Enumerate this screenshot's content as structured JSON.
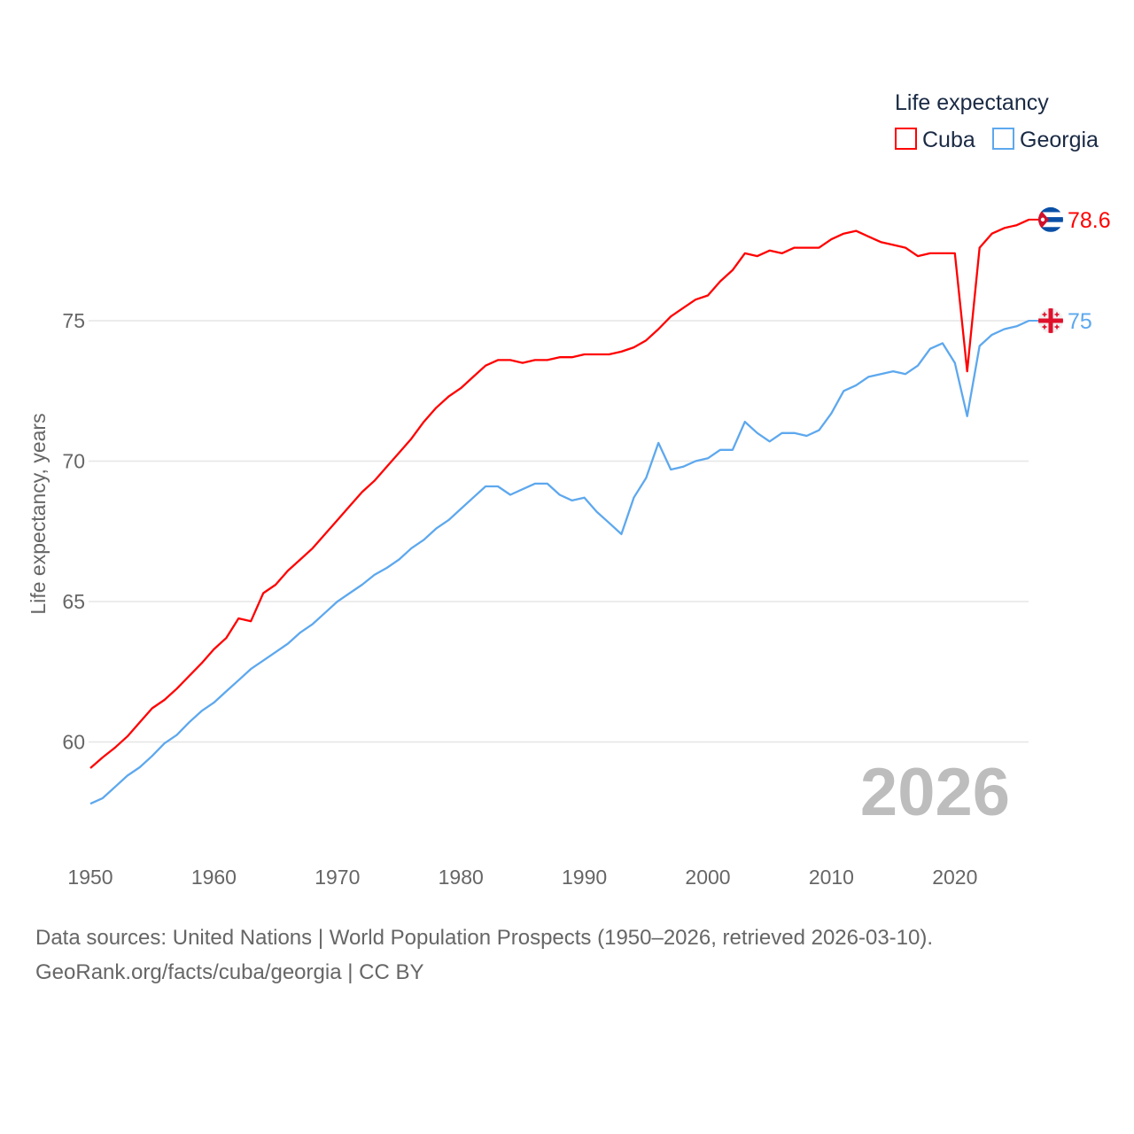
{
  "chart_data": {
    "type": "line",
    "title": "",
    "legend_title": "Life expectancy",
    "legend_placement": "top-right",
    "ylabel": "Life expectancy, years",
    "xlabel": "",
    "xlim": [
      1950,
      2026
    ],
    "ylim": [
      56.5,
      79.6
    ],
    "yticks": [
      60,
      65,
      70,
      75
    ],
    "xticks": [
      1950,
      1960,
      1970,
      1980,
      1990,
      2000,
      2010,
      2020
    ],
    "grid": true,
    "current_year": "2026",
    "x": [
      1950,
      1951,
      1952,
      1953,
      1954,
      1955,
      1956,
      1957,
      1958,
      1959,
      1960,
      1961,
      1962,
      1963,
      1964,
      1965,
      1966,
      1967,
      1968,
      1969,
      1970,
      1971,
      1972,
      1973,
      1974,
      1975,
      1976,
      1977,
      1978,
      1979,
      1980,
      1981,
      1982,
      1983,
      1984,
      1985,
      1986,
      1987,
      1988,
      1989,
      1990,
      1991,
      1992,
      1993,
      1994,
      1995,
      1996,
      1997,
      1998,
      1999,
      2000,
      2001,
      2002,
      2003,
      2004,
      2005,
      2006,
      2007,
      2008,
      2009,
      2010,
      2011,
      2012,
      2013,
      2014,
      2015,
      2016,
      2017,
      2018,
      2019,
      2020,
      2021,
      2022,
      2023,
      2024,
      2025,
      2026
    ],
    "series": [
      {
        "name": "Cuba",
        "color": "#ff0000",
        "end_label": "78.6",
        "values": [
          59.07,
          59.45,
          59.8,
          60.2,
          60.7,
          61.2,
          61.5,
          61.9,
          62.35,
          62.8,
          63.3,
          63.7,
          64.4,
          64.3,
          65.3,
          65.6,
          66.1,
          66.5,
          66.9,
          67.4,
          67.9,
          68.4,
          68.9,
          69.3,
          69.8,
          70.3,
          70.8,
          71.4,
          71.9,
          72.3,
          72.6,
          73.0,
          73.4,
          73.6,
          73.6,
          73.5,
          73.6,
          73.6,
          73.7,
          73.7,
          73.8,
          73.8,
          73.8,
          73.9,
          74.05,
          74.3,
          74.7,
          75.15,
          75.45,
          75.75,
          75.9,
          76.4,
          76.8,
          77.4,
          77.3,
          77.5,
          77.4,
          77.6,
          77.6,
          77.6,
          77.9,
          78.1,
          78.2,
          78.0,
          77.8,
          77.7,
          77.6,
          77.3,
          77.4,
          77.4,
          77.4,
          73.2,
          77.6,
          78.1,
          78.3,
          78.4,
          78.6
        ]
      },
      {
        "name": "Georgia",
        "color": "#5da8ee",
        "end_label": "75",
        "values": [
          57.8,
          58.0,
          58.4,
          58.8,
          59.1,
          59.5,
          59.95,
          60.25,
          60.7,
          61.1,
          61.4,
          61.8,
          62.2,
          62.6,
          62.9,
          63.2,
          63.5,
          63.9,
          64.2,
          64.6,
          65.0,
          65.3,
          65.6,
          65.95,
          66.2,
          66.5,
          66.9,
          67.2,
          67.6,
          67.9,
          68.3,
          68.7,
          69.1,
          69.1,
          68.8,
          69.0,
          69.2,
          69.2,
          68.8,
          68.6,
          68.7,
          68.2,
          67.8,
          67.4,
          68.7,
          69.4,
          70.65,
          69.7,
          69.8,
          70.0,
          70.1,
          70.4,
          70.4,
          71.4,
          71.0,
          70.7,
          71.0,
          71.0,
          70.9,
          71.1,
          71.7,
          72.5,
          72.7,
          73.0,
          73.1,
          73.2,
          73.1,
          73.4,
          74.0,
          74.2,
          73.5,
          71.6,
          74.1,
          74.5,
          74.7,
          74.8,
          75.0
        ]
      }
    ]
  },
  "source": {
    "line1": "Data sources: United Nations | World Population Prospects (1950–2026, retrieved 2026-03-10).",
    "line2": "GeoRank.org/facts/cuba/georgia | CC BY"
  }
}
